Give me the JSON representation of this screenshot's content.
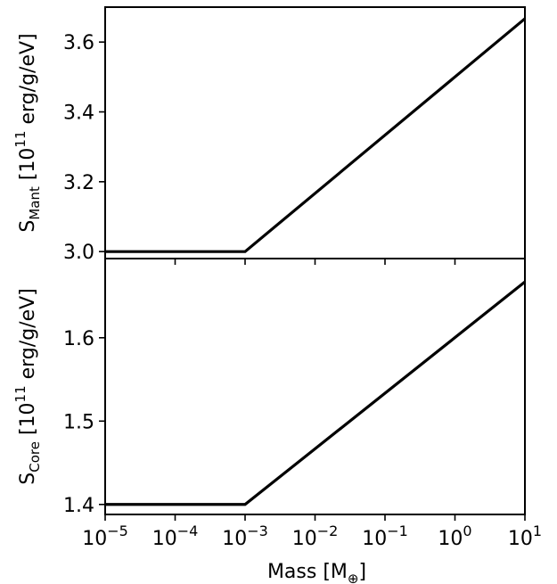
{
  "chart_data": [
    {
      "type": "line",
      "ylabel": "S_Mant [10^11 erg/g/eV]",
      "ylabel_parts": {
        "base": "S",
        "sub": "Mant",
        "rest_pre": " [10",
        "sup": "11",
        "rest_post": " erg/g/eV]"
      },
      "x_scale": "log",
      "xlim": [
        1e-05,
        10
      ],
      "ylim": [
        2.98,
        3.7
      ],
      "yticks": [
        3.0,
        3.2,
        3.4,
        3.6
      ],
      "ytick_labels": [
        "3.0",
        "3.2",
        "3.4",
        "3.6"
      ],
      "series": [
        {
          "x": [
            1e-05,
            0.001,
            10
          ],
          "y": [
            3.0,
            3.0,
            3.667
          ],
          "color": "#000000"
        }
      ],
      "grid": false,
      "legend": "none"
    },
    {
      "type": "line",
      "ylabel": "S_Core [10^11 erg/g/eV]",
      "ylabel_parts": {
        "base": "S",
        "sub": "Core",
        "rest_pre": " [10",
        "sup": "11",
        "rest_post": " erg/g/eV]"
      },
      "xlabel": "Mass [M⊕]",
      "xlabel_parts": {
        "pre": "Mass [M",
        "sub": "⊕",
        "post": "]"
      },
      "x_scale": "log",
      "xlim": [
        1e-05,
        10
      ],
      "ylim": [
        1.388,
        1.695
      ],
      "yticks": [
        1.4,
        1.5,
        1.6
      ],
      "ytick_labels": [
        "1.4",
        "1.5",
        "1.6"
      ],
      "xticks": [
        1e-05,
        0.0001,
        0.001,
        0.01,
        0.1,
        1,
        10
      ],
      "xtick_labels": [
        {
          "base": "10",
          "exp": "−5"
        },
        {
          "base": "10",
          "exp": "−4"
        },
        {
          "base": "10",
          "exp": "−3"
        },
        {
          "base": "10",
          "exp": "−2"
        },
        {
          "base": "10",
          "exp": "−1"
        },
        {
          "base": "10",
          "exp": "0"
        },
        {
          "base": "10",
          "exp": "1"
        }
      ],
      "series": [
        {
          "x": [
            1e-05,
            0.001,
            10
          ],
          "y": [
            1.4,
            1.4,
            1.667
          ],
          "color": "#000000"
        }
      ],
      "grid": false,
      "legend": "none"
    }
  ]
}
